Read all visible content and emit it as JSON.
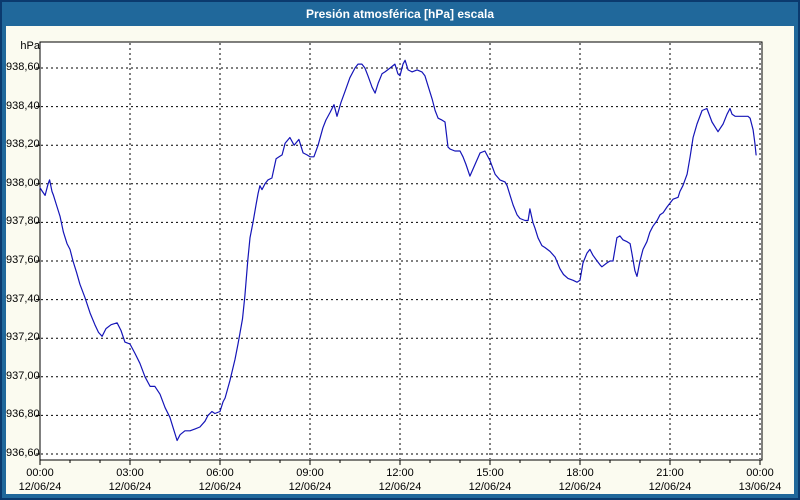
{
  "window": {
    "title": "Presión atmosférica [hPa] escala"
  },
  "colors": {
    "titlebar_bg": "#20689b",
    "window_border": "#0b3a6e",
    "content_bg": "#fbfbf0",
    "plot_bg": "#ffffff",
    "line": "#1515b8",
    "grid": "#000000",
    "text": "#000000"
  },
  "chart_data": {
    "type": "line",
    "title": "Presión atmosférica [hPa] escala",
    "legend": "none",
    "grid": "dashed-both-axes",
    "y_axis": {
      "unit": "hPa",
      "grid_top_value": 938.6,
      "grid_bottom_value": 936.6,
      "ylim": [
        936.57,
        938.74
      ],
      "tick_step": 0.2,
      "ticks": [
        {
          "label": "938,60",
          "value": 938.6
        },
        {
          "label": "938,40",
          "value": 938.4
        },
        {
          "label": "938,20",
          "value": 938.2
        },
        {
          "label": "938,00",
          "value": 938.0
        },
        {
          "label": "937,80",
          "value": 937.8
        },
        {
          "label": "937,60",
          "value": 937.6
        },
        {
          "label": "937,40",
          "value": 937.4
        },
        {
          "label": "937,20",
          "value": 937.2
        },
        {
          "label": "937,00",
          "value": 937.0
        },
        {
          "label": "936,80",
          "value": 936.8
        },
        {
          "label": "936,60",
          "value": 936.6
        }
      ]
    },
    "x_axis": {
      "span_hours": 24,
      "major_tick_hours": 3,
      "minor_tick_hours": 1,
      "ticks": [
        {
          "time": "00:00",
          "date": "12/06/24",
          "hour": 0
        },
        {
          "time": "03:00",
          "date": "12/06/24",
          "hour": 3
        },
        {
          "time": "06:00",
          "date": "12/06/24",
          "hour": 6
        },
        {
          "time": "09:00",
          "date": "12/06/24",
          "hour": 9
        },
        {
          "time": "12:00",
          "date": "12/06/24",
          "hour": 12
        },
        {
          "time": "15:00",
          "date": "12/06/24",
          "hour": 15
        },
        {
          "time": "18:00",
          "date": "12/06/24",
          "hour": 18
        },
        {
          "time": "21:00",
          "date": "12/06/24",
          "hour": 21
        },
        {
          "time": "00:00",
          "date": "13/06/24",
          "hour": 24
        }
      ]
    },
    "series": [
      {
        "name": "Presión atmosférica",
        "unit": "hPa",
        "color": "#1515b8",
        "points_t_hours_value_hpa": [
          [
            0.0,
            937.98
          ],
          [
            0.08,
            937.96
          ],
          [
            0.17,
            937.94
          ],
          [
            0.27,
            938.0
          ],
          [
            0.32,
            938.02
          ],
          [
            0.4,
            937.96
          ],
          [
            0.45,
            937.94
          ],
          [
            0.57,
            937.88
          ],
          [
            0.67,
            937.83
          ],
          [
            0.78,
            937.75
          ],
          [
            0.9,
            937.69
          ],
          [
            1.0,
            937.66
          ],
          [
            1.1,
            937.6
          ],
          [
            1.22,
            937.54
          ],
          [
            1.33,
            937.48
          ],
          [
            1.5,
            937.41
          ],
          [
            1.67,
            937.33
          ],
          [
            1.83,
            937.27
          ],
          [
            1.95,
            937.23
          ],
          [
            2.07,
            937.21
          ],
          [
            2.2,
            937.25
          ],
          [
            2.37,
            937.27
          ],
          [
            2.57,
            937.28
          ],
          [
            2.7,
            937.24
          ],
          [
            2.83,
            937.18
          ],
          [
            3.0,
            937.17
          ],
          [
            3.17,
            937.12
          ],
          [
            3.33,
            937.07
          ],
          [
            3.5,
            937.0
          ],
          [
            3.67,
            936.95
          ],
          [
            3.83,
            936.95
          ],
          [
            4.0,
            936.91
          ],
          [
            4.17,
            936.84
          ],
          [
            4.33,
            936.79
          ],
          [
            4.45,
            936.73
          ],
          [
            4.57,
            936.67
          ],
          [
            4.67,
            936.7
          ],
          [
            4.83,
            936.72
          ],
          [
            5.0,
            936.72
          ],
          [
            5.17,
            936.73
          ],
          [
            5.33,
            936.74
          ],
          [
            5.5,
            936.77
          ],
          [
            5.6,
            936.8
          ],
          [
            5.73,
            936.82
          ],
          [
            5.83,
            936.81
          ],
          [
            6.0,
            936.82
          ],
          [
            6.1,
            936.87
          ],
          [
            6.17,
            936.89
          ],
          [
            6.33,
            936.98
          ],
          [
            6.5,
            937.09
          ],
          [
            6.6,
            937.17
          ],
          [
            6.67,
            937.23
          ],
          [
            6.75,
            937.3
          ],
          [
            6.83,
            937.42
          ],
          [
            6.93,
            937.61
          ],
          [
            7.0,
            937.72
          ],
          [
            7.1,
            937.8
          ],
          [
            7.2,
            937.89
          ],
          [
            7.27,
            937.95
          ],
          [
            7.33,
            937.99
          ],
          [
            7.4,
            937.97
          ],
          [
            7.5,
            938.0
          ],
          [
            7.6,
            938.02
          ],
          [
            7.73,
            938.03
          ],
          [
            7.87,
            938.13
          ],
          [
            7.97,
            938.14
          ],
          [
            8.07,
            938.15
          ],
          [
            8.17,
            938.21
          ],
          [
            8.33,
            938.24
          ],
          [
            8.47,
            938.2
          ],
          [
            8.63,
            938.23
          ],
          [
            8.77,
            938.16
          ],
          [
            8.9,
            938.15
          ],
          [
            9.0,
            938.14
          ],
          [
            9.13,
            938.14
          ],
          [
            9.27,
            938.2
          ],
          [
            9.43,
            938.29
          ],
          [
            9.53,
            938.33
          ],
          [
            9.67,
            938.37
          ],
          [
            9.8,
            938.41
          ],
          [
            9.9,
            938.35
          ],
          [
            10.03,
            938.42
          ],
          [
            10.17,
            938.48
          ],
          [
            10.33,
            938.55
          ],
          [
            10.5,
            938.6
          ],
          [
            10.6,
            938.62
          ],
          [
            10.73,
            938.62
          ],
          [
            10.83,
            938.6
          ],
          [
            10.93,
            938.56
          ],
          [
            11.07,
            938.5
          ],
          [
            11.17,
            938.47
          ],
          [
            11.27,
            938.52
          ],
          [
            11.4,
            938.57
          ],
          [
            11.5,
            938.58
          ],
          [
            11.67,
            938.6
          ],
          [
            11.83,
            938.62
          ],
          [
            11.93,
            938.57
          ],
          [
            12.0,
            938.56
          ],
          [
            12.1,
            938.62
          ],
          [
            12.17,
            938.64
          ],
          [
            12.27,
            938.59
          ],
          [
            12.4,
            938.58
          ],
          [
            12.57,
            938.59
          ],
          [
            12.73,
            938.58
          ],
          [
            12.83,
            938.56
          ],
          [
            12.93,
            938.51
          ],
          [
            13.07,
            938.44
          ],
          [
            13.17,
            938.38
          ],
          [
            13.27,
            938.34
          ],
          [
            13.4,
            938.33
          ],
          [
            13.5,
            938.32
          ],
          [
            13.6,
            938.19
          ],
          [
            13.67,
            938.18
          ],
          [
            13.83,
            938.17
          ],
          [
            14.0,
            938.17
          ],
          [
            14.1,
            938.14
          ],
          [
            14.2,
            938.1
          ],
          [
            14.33,
            938.04
          ],
          [
            14.5,
            938.1
          ],
          [
            14.67,
            938.16
          ],
          [
            14.83,
            938.17
          ],
          [
            15.0,
            938.12
          ],
          [
            15.17,
            938.05
          ],
          [
            15.33,
            938.02
          ],
          [
            15.5,
            938.01
          ],
          [
            15.57,
            937.99
          ],
          [
            15.67,
            937.94
          ],
          [
            15.77,
            937.89
          ],
          [
            15.9,
            937.84
          ],
          [
            16.0,
            937.82
          ],
          [
            16.17,
            937.81
          ],
          [
            16.27,
            937.81
          ],
          [
            16.33,
            937.87
          ],
          [
            16.43,
            937.8
          ],
          [
            16.5,
            937.77
          ],
          [
            16.6,
            937.72
          ],
          [
            16.73,
            937.68
          ],
          [
            16.83,
            937.67
          ],
          [
            17.0,
            937.65
          ],
          [
            17.17,
            937.62
          ],
          [
            17.33,
            937.56
          ],
          [
            17.45,
            937.53
          ],
          [
            17.6,
            937.51
          ],
          [
            17.77,
            937.5
          ],
          [
            17.9,
            937.49
          ],
          [
            18.0,
            937.5
          ],
          [
            18.1,
            937.59
          ],
          [
            18.23,
            937.64
          ],
          [
            18.33,
            937.66
          ],
          [
            18.43,
            937.63
          ],
          [
            18.57,
            937.6
          ],
          [
            18.67,
            937.58
          ],
          [
            18.73,
            937.57
          ],
          [
            18.9,
            937.59
          ],
          [
            19.0,
            937.6
          ],
          [
            19.1,
            937.6
          ],
          [
            19.23,
            937.72
          ],
          [
            19.33,
            937.73
          ],
          [
            19.43,
            937.71
          ],
          [
            19.57,
            937.7
          ],
          [
            19.67,
            937.69
          ],
          [
            19.73,
            937.64
          ],
          [
            19.83,
            937.55
          ],
          [
            19.9,
            937.52
          ],
          [
            20.0,
            937.6
          ],
          [
            20.1,
            937.66
          ],
          [
            20.23,
            937.7
          ],
          [
            20.33,
            937.75
          ],
          [
            20.43,
            937.78
          ],
          [
            20.57,
            937.81
          ],
          [
            20.67,
            937.84
          ],
          [
            20.77,
            937.85
          ],
          [
            20.9,
            937.88
          ],
          [
            21.0,
            937.9
          ],
          [
            21.1,
            937.92
          ],
          [
            21.27,
            937.93
          ],
          [
            21.33,
            937.96
          ],
          [
            21.43,
            937.99
          ],
          [
            21.57,
            938.05
          ],
          [
            21.67,
            938.14
          ],
          [
            21.77,
            938.24
          ],
          [
            21.9,
            938.31
          ],
          [
            22.07,
            938.38
          ],
          [
            22.23,
            938.39
          ],
          [
            22.4,
            938.32
          ],
          [
            22.6,
            938.27
          ],
          [
            22.77,
            938.31
          ],
          [
            22.9,
            938.36
          ],
          [
            23.0,
            938.39
          ],
          [
            23.07,
            938.36
          ],
          [
            23.17,
            938.35
          ],
          [
            23.33,
            938.35
          ],
          [
            23.5,
            938.35
          ],
          [
            23.6,
            938.35
          ],
          [
            23.67,
            938.34
          ],
          [
            23.77,
            938.28
          ],
          [
            23.83,
            938.21
          ],
          [
            23.87,
            938.15
          ]
        ]
      }
    ]
  }
}
